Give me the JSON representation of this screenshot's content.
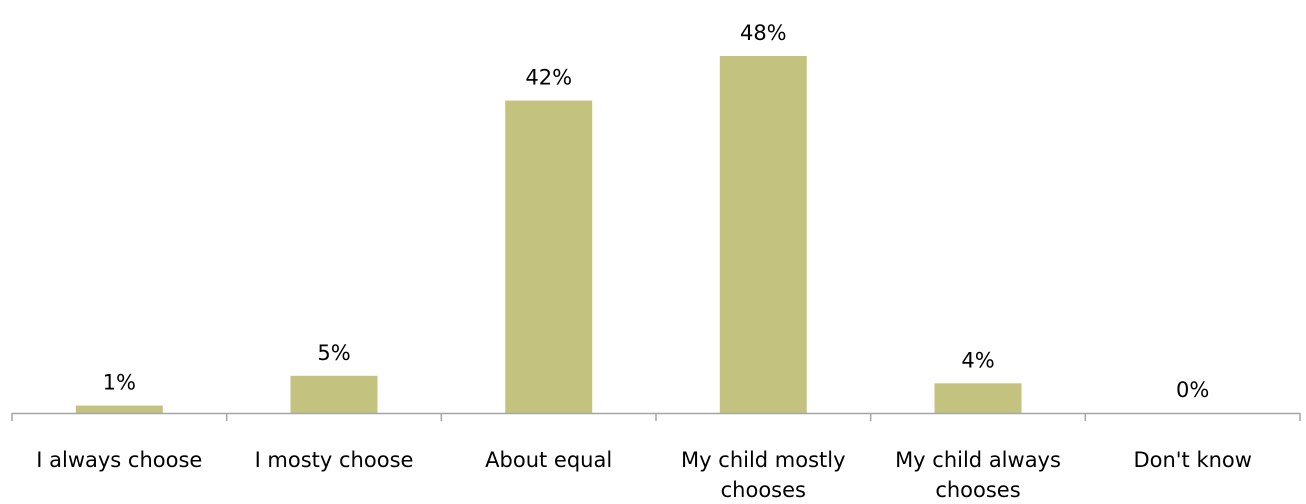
{
  "chart_data": {
    "type": "bar",
    "title": "",
    "xlabel": "",
    "ylabel": "",
    "categories": [
      [
        "I always choose"
      ],
      [
        "I mosty choose"
      ],
      [
        "About equal"
      ],
      [
        "My child mostly",
        "chooses"
      ],
      [
        "My child always",
        "chooses"
      ],
      [
        "Don't know"
      ]
    ],
    "values": [
      1,
      5,
      42,
      48,
      4,
      0
    ],
    "value_labels": [
      "1%",
      "5%",
      "42%",
      "48%",
      "4%",
      "0%"
    ],
    "ylim": [
      0,
      48
    ],
    "grid": false,
    "legend": "none",
    "colors": {
      "bar": "#c3c37f",
      "axis": "#a6a6a6",
      "text": "#000000"
    }
  }
}
